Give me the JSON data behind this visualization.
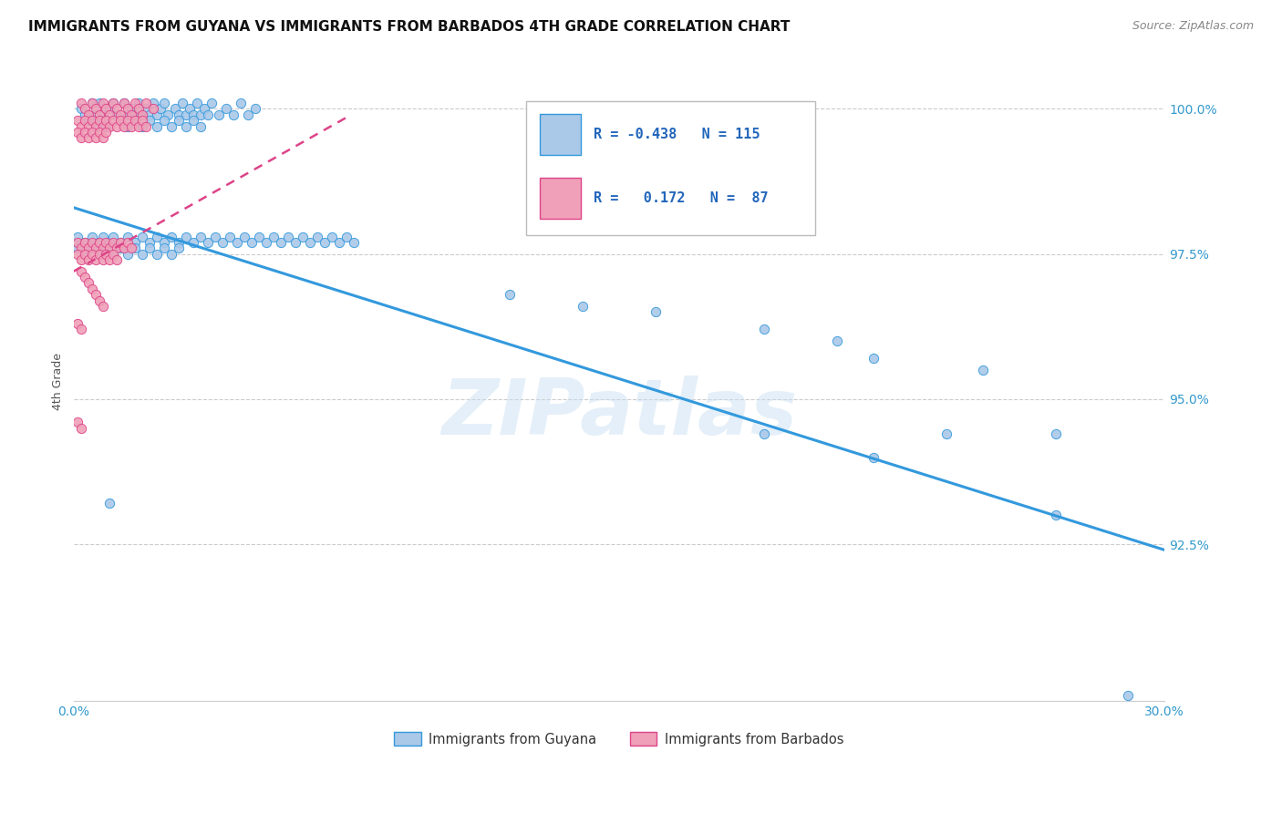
{
  "title": "IMMIGRANTS FROM GUYANA VS IMMIGRANTS FROM BARBADOS 4TH GRADE CORRELATION CHART",
  "source": "Source: ZipAtlas.com",
  "ylabel": "4th Grade",
  "x_range": [
    0.0,
    0.3
  ],
  "y_range": [
    0.898,
    1.008
  ],
  "y_ticks": [
    0.925,
    0.95,
    0.975,
    1.0
  ],
  "y_tick_labels": [
    "92.5%",
    "95.0%",
    "97.5%",
    "100.0%"
  ],
  "color_guyana": "#aac8e8",
  "color_barbados": "#f0a0b8",
  "color_line_guyana": "#3399dd",
  "color_line_barbados": "#dd4488",
  "watermark": "ZIPatlas",
  "guyana_line_x": [
    0.0,
    0.3
  ],
  "guyana_line_y": [
    0.983,
    0.924
  ],
  "barbados_line_x": [
    0.0,
    0.075
  ],
  "barbados_line_y": [
    0.972,
    0.9985
  ],
  "guyana_points": [
    [
      0.002,
      1.0
    ],
    [
      0.003,
      0.999
    ],
    [
      0.005,
      1.001
    ],
    [
      0.006,
      0.999
    ],
    [
      0.007,
      1.001
    ],
    [
      0.008,
      0.999
    ],
    [
      0.01,
      1.0
    ],
    [
      0.011,
      1.001
    ],
    [
      0.012,
      0.999
    ],
    [
      0.014,
      1.001
    ],
    [
      0.015,
      0.999
    ],
    [
      0.016,
      1.0
    ],
    [
      0.017,
      0.999
    ],
    [
      0.018,
      1.001
    ],
    [
      0.019,
      0.999
    ],
    [
      0.02,
      1.0
    ],
    [
      0.021,
      0.999
    ],
    [
      0.022,
      1.001
    ],
    [
      0.023,
      0.999
    ],
    [
      0.024,
      1.0
    ],
    [
      0.025,
      1.001
    ],
    [
      0.026,
      0.999
    ],
    [
      0.028,
      1.0
    ],
    [
      0.029,
      0.999
    ],
    [
      0.03,
      1.001
    ],
    [
      0.031,
      0.999
    ],
    [
      0.032,
      1.0
    ],
    [
      0.033,
      0.999
    ],
    [
      0.034,
      1.001
    ],
    [
      0.035,
      0.999
    ],
    [
      0.036,
      1.0
    ],
    [
      0.037,
      0.999
    ],
    [
      0.038,
      1.001
    ],
    [
      0.04,
      0.999
    ],
    [
      0.042,
      1.0
    ],
    [
      0.044,
      0.999
    ],
    [
      0.046,
      1.001
    ],
    [
      0.048,
      0.999
    ],
    [
      0.05,
      1.0
    ],
    [
      0.004,
      0.998
    ],
    [
      0.006,
      0.997
    ],
    [
      0.008,
      0.998
    ],
    [
      0.009,
      0.997
    ],
    [
      0.013,
      0.998
    ],
    [
      0.015,
      0.997
    ],
    [
      0.017,
      0.998
    ],
    [
      0.019,
      0.997
    ],
    [
      0.021,
      0.998
    ],
    [
      0.023,
      0.997
    ],
    [
      0.025,
      0.998
    ],
    [
      0.027,
      0.997
    ],
    [
      0.029,
      0.998
    ],
    [
      0.031,
      0.997
    ],
    [
      0.033,
      0.998
    ],
    [
      0.035,
      0.997
    ],
    [
      0.001,
      0.978
    ],
    [
      0.003,
      0.977
    ],
    [
      0.005,
      0.978
    ],
    [
      0.007,
      0.977
    ],
    [
      0.008,
      0.978
    ],
    [
      0.01,
      0.977
    ],
    [
      0.011,
      0.978
    ],
    [
      0.013,
      0.977
    ],
    [
      0.015,
      0.978
    ],
    [
      0.017,
      0.977
    ],
    [
      0.019,
      0.978
    ],
    [
      0.021,
      0.977
    ],
    [
      0.023,
      0.978
    ],
    [
      0.025,
      0.977
    ],
    [
      0.027,
      0.978
    ],
    [
      0.029,
      0.977
    ],
    [
      0.031,
      0.978
    ],
    [
      0.033,
      0.977
    ],
    [
      0.035,
      0.978
    ],
    [
      0.037,
      0.977
    ],
    [
      0.039,
      0.978
    ],
    [
      0.041,
      0.977
    ],
    [
      0.043,
      0.978
    ],
    [
      0.045,
      0.977
    ],
    [
      0.047,
      0.978
    ],
    [
      0.049,
      0.977
    ],
    [
      0.051,
      0.978
    ],
    [
      0.053,
      0.977
    ],
    [
      0.055,
      0.978
    ],
    [
      0.057,
      0.977
    ],
    [
      0.059,
      0.978
    ],
    [
      0.061,
      0.977
    ],
    [
      0.063,
      0.978
    ],
    [
      0.065,
      0.977
    ],
    [
      0.067,
      0.978
    ],
    [
      0.069,
      0.977
    ],
    [
      0.071,
      0.978
    ],
    [
      0.073,
      0.977
    ],
    [
      0.075,
      0.978
    ],
    [
      0.077,
      0.977
    ],
    [
      0.001,
      0.976
    ],
    [
      0.003,
      0.975
    ],
    [
      0.005,
      0.976
    ],
    [
      0.007,
      0.975
    ],
    [
      0.009,
      0.976
    ],
    [
      0.011,
      0.975
    ],
    [
      0.013,
      0.976
    ],
    [
      0.015,
      0.975
    ],
    [
      0.017,
      0.976
    ],
    [
      0.019,
      0.975
    ],
    [
      0.021,
      0.976
    ],
    [
      0.023,
      0.975
    ],
    [
      0.025,
      0.976
    ],
    [
      0.027,
      0.975
    ],
    [
      0.029,
      0.976
    ],
    [
      0.12,
      0.968
    ],
    [
      0.14,
      0.966
    ],
    [
      0.16,
      0.965
    ],
    [
      0.19,
      0.962
    ],
    [
      0.21,
      0.96
    ],
    [
      0.22,
      0.957
    ],
    [
      0.25,
      0.955
    ],
    [
      0.19,
      0.944
    ],
    [
      0.27,
      0.944
    ],
    [
      0.22,
      0.94
    ],
    [
      0.24,
      0.944
    ],
    [
      0.01,
      0.932
    ],
    [
      0.27,
      0.93
    ],
    [
      0.29,
      0.899
    ]
  ],
  "barbados_points": [
    [
      0.002,
      1.001
    ],
    [
      0.003,
      1.0
    ],
    [
      0.004,
      0.999
    ],
    [
      0.005,
      1.001
    ],
    [
      0.006,
      1.0
    ],
    [
      0.007,
      0.999
    ],
    [
      0.008,
      1.001
    ],
    [
      0.009,
      1.0
    ],
    [
      0.01,
      0.999
    ],
    [
      0.011,
      1.001
    ],
    [
      0.012,
      1.0
    ],
    [
      0.013,
      0.999
    ],
    [
      0.014,
      1.001
    ],
    [
      0.015,
      1.0
    ],
    [
      0.016,
      0.999
    ],
    [
      0.017,
      1.001
    ],
    [
      0.018,
      1.0
    ],
    [
      0.019,
      0.999
    ],
    [
      0.02,
      1.001
    ],
    [
      0.022,
      1.0
    ],
    [
      0.001,
      0.998
    ],
    [
      0.002,
      0.997
    ],
    [
      0.003,
      0.998
    ],
    [
      0.004,
      0.997
    ],
    [
      0.005,
      0.998
    ],
    [
      0.006,
      0.997
    ],
    [
      0.007,
      0.998
    ],
    [
      0.008,
      0.997
    ],
    [
      0.009,
      0.998
    ],
    [
      0.01,
      0.997
    ],
    [
      0.011,
      0.998
    ],
    [
      0.012,
      0.997
    ],
    [
      0.013,
      0.998
    ],
    [
      0.014,
      0.997
    ],
    [
      0.015,
      0.998
    ],
    [
      0.016,
      0.997
    ],
    [
      0.017,
      0.998
    ],
    [
      0.018,
      0.997
    ],
    [
      0.019,
      0.998
    ],
    [
      0.02,
      0.997
    ],
    [
      0.001,
      0.996
    ],
    [
      0.002,
      0.995
    ],
    [
      0.003,
      0.996
    ],
    [
      0.004,
      0.995
    ],
    [
      0.005,
      0.996
    ],
    [
      0.006,
      0.995
    ],
    [
      0.007,
      0.996
    ],
    [
      0.008,
      0.995
    ],
    [
      0.009,
      0.996
    ],
    [
      0.001,
      0.977
    ],
    [
      0.002,
      0.976
    ],
    [
      0.003,
      0.977
    ],
    [
      0.004,
      0.976
    ],
    [
      0.005,
      0.977
    ],
    [
      0.006,
      0.976
    ],
    [
      0.007,
      0.977
    ],
    [
      0.008,
      0.976
    ],
    [
      0.009,
      0.977
    ],
    [
      0.01,
      0.976
    ],
    [
      0.011,
      0.977
    ],
    [
      0.012,
      0.976
    ],
    [
      0.013,
      0.977
    ],
    [
      0.014,
      0.976
    ],
    [
      0.015,
      0.977
    ],
    [
      0.016,
      0.976
    ],
    [
      0.001,
      0.975
    ],
    [
      0.002,
      0.974
    ],
    [
      0.003,
      0.975
    ],
    [
      0.004,
      0.974
    ],
    [
      0.005,
      0.975
    ],
    [
      0.006,
      0.974
    ],
    [
      0.007,
      0.975
    ],
    [
      0.008,
      0.974
    ],
    [
      0.009,
      0.975
    ],
    [
      0.01,
      0.974
    ],
    [
      0.011,
      0.975
    ],
    [
      0.012,
      0.974
    ],
    [
      0.002,
      0.972
    ],
    [
      0.003,
      0.971
    ],
    [
      0.004,
      0.97
    ],
    [
      0.005,
      0.969
    ],
    [
      0.006,
      0.968
    ],
    [
      0.007,
      0.967
    ],
    [
      0.008,
      0.966
    ],
    [
      0.001,
      0.963
    ],
    [
      0.002,
      0.962
    ],
    [
      0.001,
      0.946
    ],
    [
      0.002,
      0.945
    ]
  ]
}
